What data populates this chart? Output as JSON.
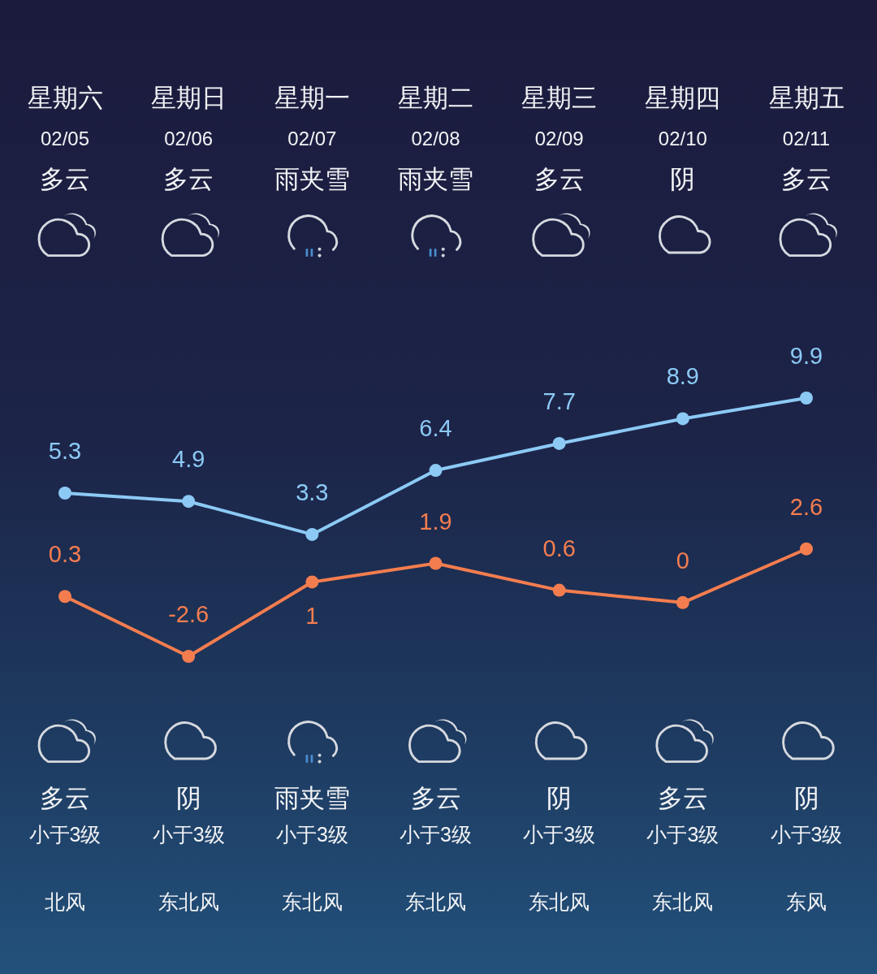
{
  "chart_data": {
    "type": "line",
    "categories": [
      "星期六\n02/05\n多云",
      "星期日\n02/06\n多云",
      "星期一\n02/07\n雨夹雪",
      "星期二\n02/08\n雨夹雪",
      "星期三\n02/09\n多云",
      "星期四\n02/10\n阴",
      "星期五\n02/11\n多云"
    ],
    "series": [
      {
        "color": "#8ccaf5",
        "values": [
          5.3,
          4.9,
          3.3,
          6.4,
          7.7,
          8.9,
          9.9
        ]
      },
      {
        "color": "#f47d4f",
        "values": [
          0.3,
          -2.6,
          1,
          1.9,
          0.6,
          0,
          2.6
        ]
      }
    ],
    "marker": "circle",
    "data_labels": true,
    "annotations": [
      "多云",
      "阴",
      "雨夹雪",
      "多云",
      "阴",
      "多云",
      "阴",
      "小于3级",
      "小于3级",
      "小于3级",
      "小于3级",
      "小于3级",
      "小于3级",
      "小于3级",
      "北风",
      "东北风",
      "东北风",
      "东北风",
      "东北风",
      "东北风",
      "东风"
    ]
  }
}
